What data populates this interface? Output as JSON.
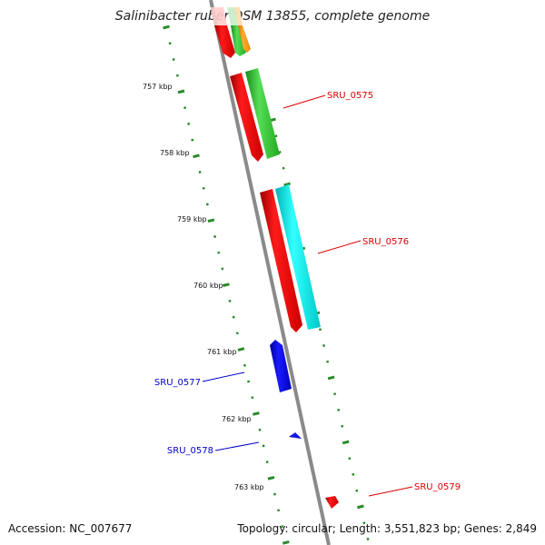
{
  "header": {
    "title": "Salinibacter ruber DSM 13855, complete genome"
  },
  "footer": {
    "accession": "Accession: NC_007677",
    "summary": "Topology: circular; Length: 3,551,823 bp; Genes: 2,849"
  },
  "map": {
    "colors": {
      "backbone": "#888888",
      "tick_major": "#1e7a1e",
      "tick_minor": "#2a8a2a",
      "leader_red": "#dd0000",
      "leader_blue": "#0000cc"
    },
    "kbp_labels": [
      "757 kbp",
      "758 kbp",
      "759 kbp",
      "760 kbp",
      "761 kbp",
      "762 kbp",
      "763 kbp"
    ],
    "gene_labels": [
      {
        "text": "SRU_0575",
        "color": "#dd0000"
      },
      {
        "text": "SRU_0576",
        "color": "#dd0000"
      },
      {
        "text": "SRU_0577",
        "color": "#0000cc"
      },
      {
        "text": "SRU_0578",
        "color": "#0000cc"
      },
      {
        "text": "SRU_0579",
        "color": "#dd0000"
      }
    ],
    "features": [
      {
        "name": "feature-red-top",
        "color": "#ff0000"
      },
      {
        "name": "feature-green-top",
        "color": "#33cc33"
      },
      {
        "name": "feature-orange-top",
        "color": "#ff9900"
      },
      {
        "name": "feature-red-0575",
        "color": "#ff0000"
      },
      {
        "name": "feature-green-0575",
        "color": "#33cc33"
      },
      {
        "name": "feature-red-0576",
        "color": "#ff0000"
      },
      {
        "name": "feature-cyan-0576",
        "color": "#00e5e5"
      },
      {
        "name": "feature-blue-0577",
        "color": "#0000ee"
      },
      {
        "name": "feature-blue-0578",
        "color": "#0000ee"
      },
      {
        "name": "feature-red-0579",
        "color": "#ff0000"
      }
    ]
  }
}
